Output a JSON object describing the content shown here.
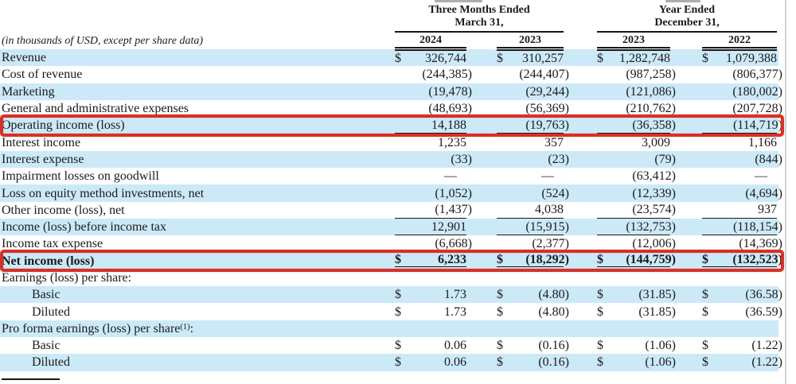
{
  "table": {
    "units_note": "(in thousands of USD, except per share data)",
    "groups": [
      {
        "line1": "Three Months Ended",
        "line2": "March 31,",
        "years": [
          "2024",
          "2023"
        ]
      },
      {
        "line1": "Year Ended",
        "line2": "December 31,",
        "years": [
          "2023",
          "2022"
        ]
      }
    ],
    "highlight_color": "#d93025",
    "zebra_color": "#cce9f8",
    "rows": [
      {
        "label": "Revenue",
        "cells": [
          [
            "$",
            "326,744"
          ],
          [
            "$",
            "310,257"
          ],
          [
            "$",
            "1,282,748"
          ],
          [
            "$",
            "1,079,388"
          ]
        ],
        "rule_top": true
      },
      {
        "label": "Cost of revenue",
        "cells": [
          [
            "",
            "(244,385)"
          ],
          [
            "",
            "(244,407)"
          ],
          [
            "",
            "(987,258)"
          ],
          [
            "",
            "(806,377)"
          ]
        ]
      },
      {
        "label": "Marketing",
        "cells": [
          [
            "",
            "(19,478)"
          ],
          [
            "",
            "(29,244)"
          ],
          [
            "",
            "(121,086)"
          ],
          [
            "",
            "(180,002)"
          ]
        ]
      },
      {
        "label": "General and administrative expenses",
        "cells": [
          [
            "",
            "(48,693)"
          ],
          [
            "",
            "(56,369)"
          ],
          [
            "",
            "(210,762)"
          ],
          [
            "",
            "(207,728)"
          ]
        ],
        "rule_bottom": true
      },
      {
        "label": "Operating income (loss)",
        "cells": [
          [
            "",
            "14,188"
          ],
          [
            "",
            "(19,763)"
          ],
          [
            "",
            "(36,358)"
          ],
          [
            "",
            "(114,719)"
          ]
        ],
        "red_box": true,
        "rule_bottom": true
      },
      {
        "label": "Interest income",
        "cells": [
          [
            "",
            "1,235"
          ],
          [
            "",
            "357"
          ],
          [
            "",
            "3,009"
          ],
          [
            "",
            "1,166"
          ]
        ]
      },
      {
        "label": "Interest expense",
        "cells": [
          [
            "",
            "(33)"
          ],
          [
            "",
            "(23)"
          ],
          [
            "",
            "(79)"
          ],
          [
            "",
            "(844)"
          ]
        ]
      },
      {
        "label": "Impairment losses on goodwill",
        "cells": [
          [
            "",
            "—"
          ],
          [
            "",
            "—"
          ],
          [
            "",
            "(63,412)"
          ],
          [
            "",
            "—"
          ]
        ]
      },
      {
        "label": "Loss on equity method investments, net",
        "cells": [
          [
            "",
            "(1,052)"
          ],
          [
            "",
            "(524)"
          ],
          [
            "",
            "(12,339)"
          ],
          [
            "",
            "(4,694)"
          ]
        ]
      },
      {
        "label": "Other income (loss), net",
        "cells": [
          [
            "",
            "(1,437)"
          ],
          [
            "",
            "4,038"
          ],
          [
            "",
            "(23,574)"
          ],
          [
            "",
            "937"
          ]
        ],
        "rule_bottom": true
      },
      {
        "label": "Income (loss) before income tax",
        "cells": [
          [
            "",
            "12,901"
          ],
          [
            "",
            "(15,915)"
          ],
          [
            "",
            "(132,753)"
          ],
          [
            "",
            "(118,154)"
          ]
        ],
        "rule_bottom": true
      },
      {
        "label": "Income tax expense",
        "cells": [
          [
            "",
            "(6,668)"
          ],
          [
            "",
            "(2,377)"
          ],
          [
            "",
            "(12,006)"
          ],
          [
            "",
            "(14,369)"
          ]
        ],
        "rule_bottom": true
      },
      {
        "label": "Net income (loss)",
        "cells": [
          [
            "$",
            "6,233"
          ],
          [
            "$",
            "(18,292)"
          ],
          [
            "$",
            "(144,759)"
          ],
          [
            "$",
            "(132,523)"
          ]
        ],
        "bold": true,
        "red_box": true,
        "rule_double": true
      },
      {
        "label": "Earnings (loss) per share:"
      },
      {
        "label": "Basic",
        "indent": 1,
        "cells": [
          [
            "$",
            "1.73"
          ],
          [
            "$",
            "(4.80)"
          ],
          [
            "$",
            "(31.85)"
          ],
          [
            "$",
            "(36.58)"
          ]
        ]
      },
      {
        "label": "Diluted",
        "indent": 1,
        "cells": [
          [
            "$",
            "1.73"
          ],
          [
            "$",
            "(4.80)"
          ],
          [
            "$",
            "(31.85)"
          ],
          [
            "$",
            "(36.59)"
          ]
        ]
      },
      {
        "label": "Pro forma earnings (loss) per share",
        "sup": "(1)",
        "suffix": ":"
      },
      {
        "label": "Basic",
        "indent": 1,
        "cells": [
          [
            "$",
            "0.06"
          ],
          [
            "$",
            "(0.16)"
          ],
          [
            "$",
            "(1.06)"
          ],
          [
            "$",
            "(1.22)"
          ]
        ]
      },
      {
        "label": "Diluted",
        "indent": 1,
        "cells": [
          [
            "$",
            "0.06"
          ],
          [
            "$",
            "(0.16)"
          ],
          [
            "$",
            "(1.06)"
          ],
          [
            "$",
            "(1.22)"
          ]
        ]
      }
    ]
  }
}
